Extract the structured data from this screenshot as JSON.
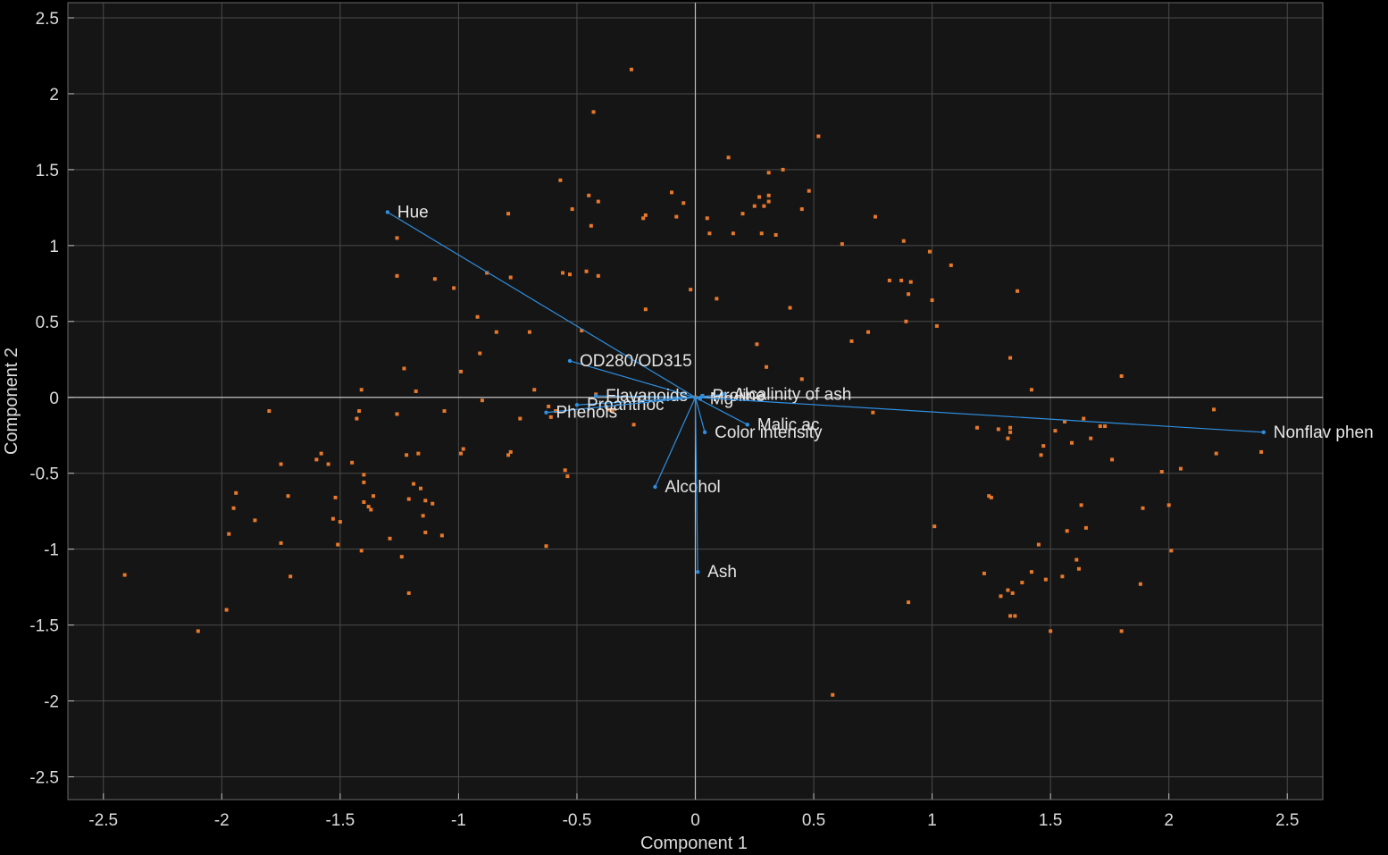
{
  "chart_data": {
    "type": "scatter",
    "subtype": "biplot",
    "xlabel": "Component 1",
    "ylabel": "Component 2",
    "xlim": [
      -2.65,
      2.65
    ],
    "ylim": [
      -2.65,
      2.6
    ],
    "xticks": [
      -2.5,
      -2,
      -1.5,
      -1,
      -0.5,
      0,
      0.5,
      1,
      1.5,
      2,
      2.5
    ],
    "yticks": [
      -2.5,
      -2,
      -1.5,
      -1,
      -0.5,
      0,
      0.5,
      1,
      1.5,
      2,
      2.5
    ],
    "xtick_labels": [
      "-2.5",
      "-2",
      "-1.5",
      "-1",
      "-0.5",
      "0",
      "0.5",
      "1",
      "1.5",
      "2",
      "2.5"
    ],
    "ytick_labels": [
      "-2.5",
      "-2",
      "-1.5",
      "-1",
      "-0.5",
      "0",
      "0.5",
      "1",
      "1.5",
      "2",
      "2.5"
    ],
    "grid": true,
    "colors": {
      "background": "#000000",
      "plot_area": "#151515",
      "grid": "#4a4a4a",
      "axis_line": "#bfbfbf",
      "points": "#e8782a",
      "vectors": "#2f8fe0",
      "text": "#dcdcdc"
    },
    "vectors": [
      {
        "label": "Hue",
        "x": -1.3,
        "y": 1.22
      },
      {
        "label": "OD280/OD315",
        "x": -0.53,
        "y": 0.24
      },
      {
        "label": "Flavanoids",
        "x": -0.42,
        "y": 0.01
      },
      {
        "label": "Proanthoc",
        "x": -0.5,
        "y": -0.05
      },
      {
        "label": "Phenols",
        "x": -0.63,
        "y": -0.1
      },
      {
        "label": "Proline",
        "x": 0.03,
        "y": 0.01
      },
      {
        "label": "Alcalinity of ash",
        "x": 0.12,
        "y": 0.02
      },
      {
        "label": "Mg",
        "x": 0.02,
        "y": -0.01
      },
      {
        "label": "Malic ac",
        "x": 0.22,
        "y": -0.18
      },
      {
        "label": "Color intensity",
        "x": 0.04,
        "y": -0.23
      },
      {
        "label": "Alcohol",
        "x": -0.17,
        "y": -0.59
      },
      {
        "label": "Ash",
        "x": 0.01,
        "y": -1.15
      },
      {
        "label": "Nonflav phen",
        "x": 2.4,
        "y": -0.23
      }
    ],
    "scores": [
      [
        -2.41,
        -1.17
      ],
      [
        -2.1,
        -1.54
      ],
      [
        -1.98,
        -1.4
      ],
      [
        -1.97,
        -0.9
      ],
      [
        -1.95,
        -0.73
      ],
      [
        -1.94,
        -0.63
      ],
      [
        -1.86,
        -0.81
      ],
      [
        -1.8,
        -0.09
      ],
      [
        -1.75,
        -0.44
      ],
      [
        -1.75,
        -0.96
      ],
      [
        -1.72,
        -0.65
      ],
      [
        -1.71,
        -1.18
      ],
      [
        -1.6,
        -0.41
      ],
      [
        -1.58,
        -0.37
      ],
      [
        -1.55,
        -0.44
      ],
      [
        -1.53,
        -0.8
      ],
      [
        -1.52,
        -0.66
      ],
      [
        -1.51,
        -0.97
      ],
      [
        -1.5,
        -0.82
      ],
      [
        -1.45,
        -0.43
      ],
      [
        -1.43,
        -0.14
      ],
      [
        -1.42,
        -0.09
      ],
      [
        -1.41,
        0.05
      ],
      [
        -1.41,
        -1.01
      ],
      [
        -1.4,
        -0.51
      ],
      [
        -1.4,
        -0.56
      ],
      [
        -1.4,
        -0.69
      ],
      [
        -1.38,
        -0.72
      ],
      [
        -1.37,
        -0.74
      ],
      [
        -1.36,
        -0.65
      ],
      [
        -1.29,
        -0.93
      ],
      [
        -1.26,
        1.05
      ],
      [
        -1.26,
        0.8
      ],
      [
        -1.26,
        -0.11
      ],
      [
        -1.24,
        -1.05
      ],
      [
        -1.23,
        0.19
      ],
      [
        -1.22,
        -0.38
      ],
      [
        -1.21,
        -0.67
      ],
      [
        -1.21,
        -1.29
      ],
      [
        -1.19,
        -0.57
      ],
      [
        -1.18,
        0.04
      ],
      [
        -1.17,
        -0.37
      ],
      [
        -1.16,
        -0.6
      ],
      [
        -1.15,
        -0.78
      ],
      [
        -1.14,
        -0.89
      ],
      [
        -1.14,
        -0.68
      ],
      [
        -1.11,
        -0.7
      ],
      [
        -1.1,
        0.78
      ],
      [
        -1.07,
        -0.91
      ],
      [
        -1.06,
        -0.09
      ],
      [
        -1.02,
        0.72
      ],
      [
        -0.99,
        -0.37
      ],
      [
        -0.99,
        0.17
      ],
      [
        -0.98,
        -0.34
      ],
      [
        -0.92,
        0.53
      ],
      [
        -0.91,
        0.29
      ],
      [
        -0.9,
        -0.02
      ],
      [
        -0.88,
        0.82
      ],
      [
        -0.84,
        0.43
      ],
      [
        -0.79,
        -0.38
      ],
      [
        -0.79,
        1.21
      ],
      [
        -0.78,
        -0.36
      ],
      [
        -0.78,
        0.79
      ],
      [
        -0.74,
        -0.14
      ],
      [
        -0.7,
        0.43
      ],
      [
        -0.68,
        0.05
      ],
      [
        -0.63,
        -0.98
      ],
      [
        -0.62,
        -0.06
      ],
      [
        -0.61,
        -0.13
      ],
      [
        -0.59,
        -0.09
      ],
      [
        -0.57,
        1.43
      ],
      [
        -0.56,
        0.82
      ],
      [
        -0.55,
        -0.48
      ],
      [
        -0.54,
        -0.52
      ],
      [
        -0.53,
        0.81
      ],
      [
        -0.52,
        1.24
      ],
      [
        -0.48,
        0.44
      ],
      [
        -0.46,
        0.83
      ],
      [
        -0.45,
        1.33
      ],
      [
        -0.44,
        1.13
      ],
      [
        -0.43,
        1.88
      ],
      [
        -0.42,
        0.02
      ],
      [
        -0.41,
        1.29
      ],
      [
        -0.41,
        0.8
      ],
      [
        -0.37,
        -0.08
      ],
      [
        -0.35,
        -0.09
      ],
      [
        -0.27,
        2.16
      ],
      [
        -0.26,
        -0.18
      ],
      [
        -0.22,
        1.18
      ],
      [
        -0.21,
        1.2
      ],
      [
        -0.21,
        0.58
      ],
      [
        -0.1,
        1.35
      ],
      [
        -0.08,
        1.19
      ],
      [
        -0.05,
        1.28
      ],
      [
        -0.02,
        0.71
      ],
      [
        0,
        0
      ],
      [
        0.03,
        0.01
      ],
      [
        0.05,
        1.18
      ],
      [
        0.06,
        1.08
      ],
      [
        0.09,
        0.65
      ],
      [
        0.14,
        1.58
      ],
      [
        0.16,
        1.08
      ],
      [
        0.2,
        1.21
      ],
      [
        0.25,
        1.26
      ],
      [
        0.26,
        0.35
      ],
      [
        0.27,
        1.32
      ],
      [
        0.28,
        1.08
      ],
      [
        0.29,
        1.26
      ],
      [
        0.3,
        0.2
      ],
      [
        0.31,
        1.48
      ],
      [
        0.31,
        1.33
      ],
      [
        0.31,
        1.29
      ],
      [
        0.34,
        1.07
      ],
      [
        0.37,
        1.5
      ],
      [
        0.4,
        0.59
      ],
      [
        0.45,
        1.24
      ],
      [
        0.45,
        0.12
      ],
      [
        0.48,
        1.36
      ],
      [
        0.52,
        1.72
      ],
      [
        0.58,
        -1.96
      ],
      [
        0.62,
        1.01
      ],
      [
        0.66,
        0.37
      ],
      [
        0.73,
        0.43
      ],
      [
        0.75,
        -0.1
      ],
      [
        0.76,
        1.19
      ],
      [
        0.82,
        0.77
      ],
      [
        0.87,
        0.77
      ],
      [
        0.88,
        1.03
      ],
      [
        0.89,
        0.5
      ],
      [
        0.9,
        0.68
      ],
      [
        0.9,
        -1.35
      ],
      [
        0.91,
        0.76
      ],
      [
        0.99,
        0.96
      ],
      [
        1,
        0.64
      ],
      [
        1.01,
        -0.85
      ],
      [
        1.02,
        0.47
      ],
      [
        1.08,
        0.87
      ],
      [
        1.19,
        -0.2
      ],
      [
        1.22,
        -1.16
      ],
      [
        1.24,
        -0.65
      ],
      [
        1.25,
        -0.66
      ],
      [
        1.28,
        -0.21
      ],
      [
        1.29,
        -1.31
      ],
      [
        1.32,
        -0.27
      ],
      [
        1.32,
        -1.27
      ],
      [
        1.33,
        0.26
      ],
      [
        1.33,
        -0.2
      ],
      [
        1.33,
        -0.23
      ],
      [
        1.33,
        -1.44
      ],
      [
        1.34,
        -1.29
      ],
      [
        1.35,
        -1.44
      ],
      [
        1.36,
        0.7
      ],
      [
        1.38,
        -1.22
      ],
      [
        1.42,
        0.05
      ],
      [
        1.42,
        -1.15
      ],
      [
        1.45,
        -0.97
      ],
      [
        1.46,
        -0.38
      ],
      [
        1.47,
        -0.32
      ],
      [
        1.48,
        -1.2
      ],
      [
        1.5,
        -1.54
      ],
      [
        1.52,
        -0.22
      ],
      [
        1.55,
        -1.18
      ],
      [
        1.56,
        -0.16
      ],
      [
        1.57,
        -0.88
      ],
      [
        1.59,
        -0.3
      ],
      [
        1.61,
        -1.07
      ],
      [
        1.62,
        -1.13
      ],
      [
        1.63,
        -0.71
      ],
      [
        1.64,
        -0.14
      ],
      [
        1.65,
        -0.86
      ],
      [
        1.67,
        -0.27
      ],
      [
        1.71,
        -0.19
      ],
      [
        1.73,
        -0.19
      ],
      [
        1.76,
        -0.41
      ],
      [
        1.8,
        0.14
      ],
      [
        1.8,
        -1.54
      ],
      [
        1.88,
        -1.23
      ],
      [
        1.89,
        -0.73
      ],
      [
        1.97,
        -0.49
      ],
      [
        2,
        -0.71
      ],
      [
        2.01,
        -1.01
      ],
      [
        2.05,
        -0.47
      ],
      [
        2.19,
        -0.08
      ],
      [
        2.2,
        -0.37
      ],
      [
        2.39,
        -0.36
      ]
    ]
  }
}
